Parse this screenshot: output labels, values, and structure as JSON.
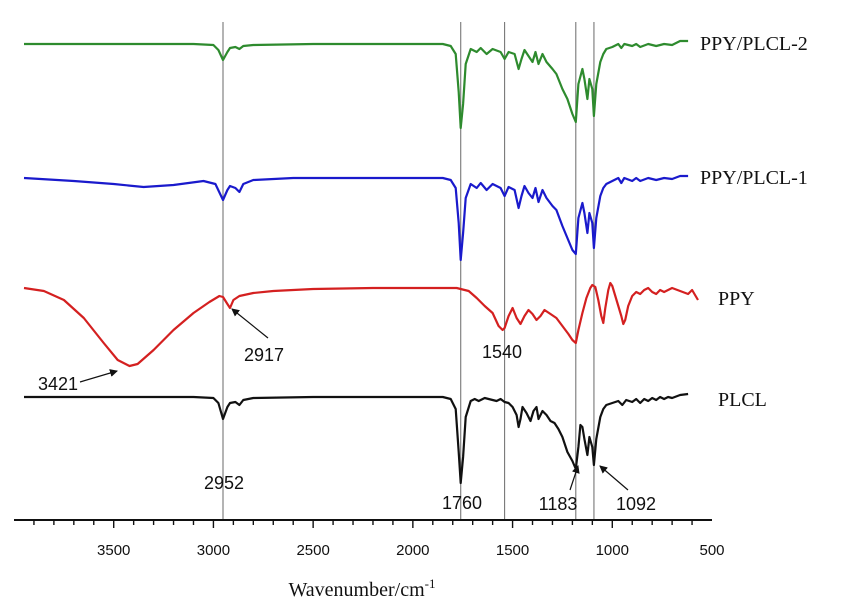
{
  "chart_data": {
    "type": "line",
    "title": "",
    "xlabel_base": "Wavenumber/cm",
    "xlabel_sup": "-1",
    "xlim": [
      4000,
      500
    ],
    "xticks": [
      3500,
      3000,
      2500,
      2000,
      1500,
      1000,
      500
    ],
    "x_reversed": true,
    "yaxis": "none",
    "legend": "labels at right end of each trace",
    "reference_lines": [
      2952,
      1760,
      1540,
      1183,
      1092
    ],
    "series": [
      {
        "name": "PPY/PLCL-2",
        "color": "#2e8b2e",
        "baseline": 0,
        "points": [
          [
            3950,
            0
          ],
          [
            3400,
            0
          ],
          [
            3100,
            0
          ],
          [
            3000,
            -1
          ],
          [
            2975,
            -6
          ],
          [
            2952,
            -16
          ],
          [
            2930,
            -8
          ],
          [
            2917,
            -4
          ],
          [
            2890,
            -3
          ],
          [
            2870,
            -5
          ],
          [
            2850,
            -2
          ],
          [
            2800,
            -1
          ],
          [
            2500,
            0
          ],
          [
            2000,
            0
          ],
          [
            1850,
            0
          ],
          [
            1810,
            -2
          ],
          [
            1785,
            -10
          ],
          [
            1770,
            -48
          ],
          [
            1760,
            -84
          ],
          [
            1748,
            -60
          ],
          [
            1735,
            -20
          ],
          [
            1710,
            -5
          ],
          [
            1680,
            -8
          ],
          [
            1660,
            -4
          ],
          [
            1630,
            -10
          ],
          [
            1600,
            -5
          ],
          [
            1560,
            -8
          ],
          [
            1540,
            -15
          ],
          [
            1520,
            -8
          ],
          [
            1490,
            -10
          ],
          [
            1470,
            -25
          ],
          [
            1455,
            -15
          ],
          [
            1440,
            -6
          ],
          [
            1420,
            -12
          ],
          [
            1400,
            -18
          ],
          [
            1385,
            -8
          ],
          [
            1370,
            -20
          ],
          [
            1350,
            -10
          ],
          [
            1330,
            -18
          ],
          [
            1300,
            -25
          ],
          [
            1280,
            -30
          ],
          [
            1250,
            -45
          ],
          [
            1225,
            -55
          ],
          [
            1200,
            -70
          ],
          [
            1183,
            -78
          ],
          [
            1170,
            -40
          ],
          [
            1150,
            -25
          ],
          [
            1140,
            -35
          ],
          [
            1125,
            -55
          ],
          [
            1115,
            -35
          ],
          [
            1100,
            -45
          ],
          [
            1092,
            -72
          ],
          [
            1080,
            -40
          ],
          [
            1060,
            -18
          ],
          [
            1045,
            -10
          ],
          [
            1030,
            -5
          ],
          [
            1000,
            -3
          ],
          [
            970,
            0
          ],
          [
            955,
            -4
          ],
          [
            940,
            0
          ],
          [
            900,
            -2
          ],
          [
            880,
            0
          ],
          [
            860,
            -3
          ],
          [
            820,
            0
          ],
          [
            780,
            -2
          ],
          [
            740,
            0
          ],
          [
            700,
            -1
          ],
          [
            660,
            3
          ],
          [
            620,
            3
          ]
        ]
      },
      {
        "name": "PPY/PLCL-1",
        "color": "#1a1acc",
        "baseline": 0,
        "points": [
          [
            3950,
            0
          ],
          [
            3700,
            -3
          ],
          [
            3500,
            -6
          ],
          [
            3350,
            -9
          ],
          [
            3200,
            -7
          ],
          [
            3050,
            -3
          ],
          [
            2990,
            -6
          ],
          [
            2952,
            -22
          ],
          [
            2930,
            -12
          ],
          [
            2917,
            -8
          ],
          [
            2890,
            -10
          ],
          [
            2870,
            -14
          ],
          [
            2850,
            -6
          ],
          [
            2800,
            -2
          ],
          [
            2600,
            0
          ],
          [
            2000,
            0
          ],
          [
            1850,
            0
          ],
          [
            1810,
            -2
          ],
          [
            1785,
            -10
          ],
          [
            1770,
            -45
          ],
          [
            1760,
            -82
          ],
          [
            1748,
            -55
          ],
          [
            1735,
            -20
          ],
          [
            1710,
            -6
          ],
          [
            1680,
            -10
          ],
          [
            1660,
            -5
          ],
          [
            1630,
            -12
          ],
          [
            1600,
            -6
          ],
          [
            1560,
            -10
          ],
          [
            1540,
            -18
          ],
          [
            1520,
            -9
          ],
          [
            1490,
            -12
          ],
          [
            1470,
            -30
          ],
          [
            1455,
            -18
          ],
          [
            1440,
            -8
          ],
          [
            1420,
            -15
          ],
          [
            1400,
            -20
          ],
          [
            1385,
            -10
          ],
          [
            1370,
            -24
          ],
          [
            1350,
            -12
          ],
          [
            1330,
            -20
          ],
          [
            1300,
            -28
          ],
          [
            1280,
            -32
          ],
          [
            1250,
            -48
          ],
          [
            1225,
            -60
          ],
          [
            1200,
            -72
          ],
          [
            1183,
            -76
          ],
          [
            1170,
            -40
          ],
          [
            1150,
            -25
          ],
          [
            1140,
            -35
          ],
          [
            1125,
            -55
          ],
          [
            1115,
            -35
          ],
          [
            1100,
            -45
          ],
          [
            1092,
            -70
          ],
          [
            1080,
            -40
          ],
          [
            1060,
            -18
          ],
          [
            1045,
            -10
          ],
          [
            1030,
            -6
          ],
          [
            1000,
            -3
          ],
          [
            970,
            0
          ],
          [
            955,
            -5
          ],
          [
            940,
            0
          ],
          [
            900,
            -3
          ],
          [
            880,
            0
          ],
          [
            860,
            -3
          ],
          [
            820,
            0
          ],
          [
            780,
            -2
          ],
          [
            740,
            0
          ],
          [
            700,
            -1
          ],
          [
            660,
            2
          ],
          [
            620,
            2
          ]
        ]
      },
      {
        "name": "PPY",
        "color": "#d42020",
        "baseline": 0,
        "points": [
          [
            3950,
            0
          ],
          [
            3850,
            -3
          ],
          [
            3750,
            -12
          ],
          [
            3650,
            -30
          ],
          [
            3550,
            -55
          ],
          [
            3480,
            -72
          ],
          [
            3421,
            -78
          ],
          [
            3380,
            -76
          ],
          [
            3300,
            -62
          ],
          [
            3200,
            -42
          ],
          [
            3100,
            -25
          ],
          [
            3020,
            -14
          ],
          [
            2970,
            -8
          ],
          [
            2952,
            -9
          ],
          [
            2930,
            -16
          ],
          [
            2917,
            -20
          ],
          [
            2900,
            -12
          ],
          [
            2870,
            -8
          ],
          [
            2800,
            -5
          ],
          [
            2700,
            -3
          ],
          [
            2500,
            -1
          ],
          [
            2200,
            0
          ],
          [
            2000,
            0
          ],
          [
            1850,
            0
          ],
          [
            1780,
            0
          ],
          [
            1720,
            -3
          ],
          [
            1680,
            -10
          ],
          [
            1640,
            -18
          ],
          [
            1600,
            -25
          ],
          [
            1570,
            -38
          ],
          [
            1550,
            -42
          ],
          [
            1540,
            -40
          ],
          [
            1520,
            -28
          ],
          [
            1500,
            -20
          ],
          [
            1480,
            -30
          ],
          [
            1460,
            -36
          ],
          [
            1440,
            -28
          ],
          [
            1420,
            -22
          ],
          [
            1400,
            -26
          ],
          [
            1380,
            -32
          ],
          [
            1360,
            -28
          ],
          [
            1340,
            -22
          ],
          [
            1310,
            -26
          ],
          [
            1280,
            -30
          ],
          [
            1250,
            -38
          ],
          [
            1220,
            -46
          ],
          [
            1200,
            -52
          ],
          [
            1183,
            -55
          ],
          [
            1170,
            -42
          ],
          [
            1150,
            -25
          ],
          [
            1130,
            -10
          ],
          [
            1110,
            0
          ],
          [
            1100,
            3
          ],
          [
            1085,
            1
          ],
          [
            1070,
            -12
          ],
          [
            1055,
            -28
          ],
          [
            1045,
            -35
          ],
          [
            1035,
            -20
          ],
          [
            1020,
            -2
          ],
          [
            1010,
            5
          ],
          [
            1000,
            2
          ],
          [
            985,
            -8
          ],
          [
            970,
            -18
          ],
          [
            955,
            -28
          ],
          [
            945,
            -36
          ],
          [
            935,
            -32
          ],
          [
            920,
            -18
          ],
          [
            900,
            -8
          ],
          [
            880,
            -4
          ],
          [
            860,
            -6
          ],
          [
            840,
            -2
          ],
          [
            820,
            0
          ],
          [
            800,
            -4
          ],
          [
            780,
            -6
          ],
          [
            760,
            -2
          ],
          [
            740,
            -4
          ],
          [
            720,
            -2
          ],
          [
            700,
            0
          ],
          [
            660,
            -3
          ],
          [
            620,
            -6
          ],
          [
            600,
            -2
          ],
          [
            570,
            -12
          ]
        ]
      },
      {
        "name": "PLCL",
        "color": "#111111",
        "baseline": 0,
        "points": [
          [
            3950,
            0
          ],
          [
            3100,
            0
          ],
          [
            3000,
            -1
          ],
          [
            2975,
            -6
          ],
          [
            2952,
            -22
          ],
          [
            2930,
            -10
          ],
          [
            2917,
            -6
          ],
          [
            2890,
            -5
          ],
          [
            2870,
            -8
          ],
          [
            2850,
            -3
          ],
          [
            2800,
            -1
          ],
          [
            2500,
            0
          ],
          [
            2000,
            0
          ],
          [
            1850,
            0
          ],
          [
            1810,
            -2
          ],
          [
            1785,
            -12
          ],
          [
            1770,
            -55
          ],
          [
            1760,
            -86
          ],
          [
            1748,
            -60
          ],
          [
            1735,
            -20
          ],
          [
            1710,
            -4
          ],
          [
            1690,
            -2
          ],
          [
            1670,
            -4
          ],
          [
            1640,
            -1
          ],
          [
            1600,
            -3
          ],
          [
            1580,
            -4
          ],
          [
            1560,
            -2
          ],
          [
            1540,
            -5
          ],
          [
            1520,
            -6
          ],
          [
            1500,
            -10
          ],
          [
            1480,
            -18
          ],
          [
            1470,
            -30
          ],
          [
            1460,
            -22
          ],
          [
            1450,
            -10
          ],
          [
            1430,
            -16
          ],
          [
            1410,
            -24
          ],
          [
            1395,
            -14
          ],
          [
            1380,
            -10
          ],
          [
            1370,
            -22
          ],
          [
            1350,
            -14
          ],
          [
            1330,
            -18
          ],
          [
            1310,
            -24
          ],
          [
            1290,
            -26
          ],
          [
            1270,
            -32
          ],
          [
            1250,
            -40
          ],
          [
            1225,
            -55
          ],
          [
            1200,
            -64
          ],
          [
            1183,
            -72
          ],
          [
            1170,
            -50
          ],
          [
            1160,
            -28
          ],
          [
            1150,
            -30
          ],
          [
            1140,
            -42
          ],
          [
            1125,
            -58
          ],
          [
            1115,
            -40
          ],
          [
            1100,
            -50
          ],
          [
            1092,
            -68
          ],
          [
            1080,
            -42
          ],
          [
            1060,
            -20
          ],
          [
            1045,
            -12
          ],
          [
            1030,
            -8
          ],
          [
            1000,
            -6
          ],
          [
            970,
            -4
          ],
          [
            950,
            -8
          ],
          [
            930,
            -3
          ],
          [
            900,
            -5
          ],
          [
            880,
            -2
          ],
          [
            860,
            -6
          ],
          [
            840,
            -2
          ],
          [
            820,
            -4
          ],
          [
            800,
            -1
          ],
          [
            780,
            -3
          ],
          [
            760,
            0
          ],
          [
            740,
            -2
          ],
          [
            720,
            0
          ],
          [
            700,
            -1
          ],
          [
            660,
            2
          ],
          [
            620,
            3
          ]
        ]
      }
    ],
    "annotations": [
      {
        "text": "3421",
        "arrow": true
      },
      {
        "text": "2917",
        "arrow": true
      },
      {
        "text": "1540",
        "arrow": false
      },
      {
        "text": "2952",
        "arrow": false
      },
      {
        "text": "1760",
        "arrow": false
      },
      {
        "text": "1183",
        "arrow": true
      },
      {
        "text": "1092",
        "arrow": true
      }
    ]
  }
}
